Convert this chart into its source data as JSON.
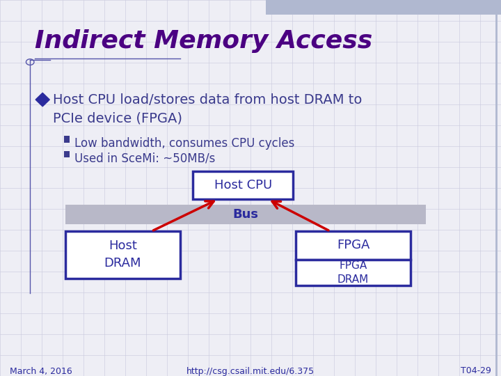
{
  "title": "Indirect Memory Access",
  "title_color": "#4B0082",
  "title_fontsize": 26,
  "bg_color": "#EEEEF5",
  "grid_color": "#C8C8DC",
  "bullet_main_color": "#3A3A8C",
  "bullet_text": "Host CPU load/stores data from host DRAM to\nPCIe device (FPGA)",
  "bullet_fontsize": 14,
  "sub_bullets": [
    "Low bandwidth, consumes CPU cycles",
    "Used in SceMi: ~50MB/s"
  ],
  "sub_fontsize": 12,
  "box_border_color": "#2B2B9E",
  "box_fill_color": "#FFFFFF",
  "box_text_color": "#2B2B9E",
  "bus_fill_color": "#B8B8C8",
  "bus_border_color": "#999999",
  "bus_text_color": "#2B2B9E",
  "arrow_color": "#CC0000",
  "footer_left": "March 4, 2016",
  "footer_center": "http://csg.csail.mit.edu/6.375",
  "footer_right": "T04-29",
  "footer_color": "#2B2B9E",
  "top_bar_color": "#B0B8D0",
  "diamond_color": "#2B2B9E",
  "left_line_color": "#5555AA",
  "title_underline_color": "#5555AA"
}
